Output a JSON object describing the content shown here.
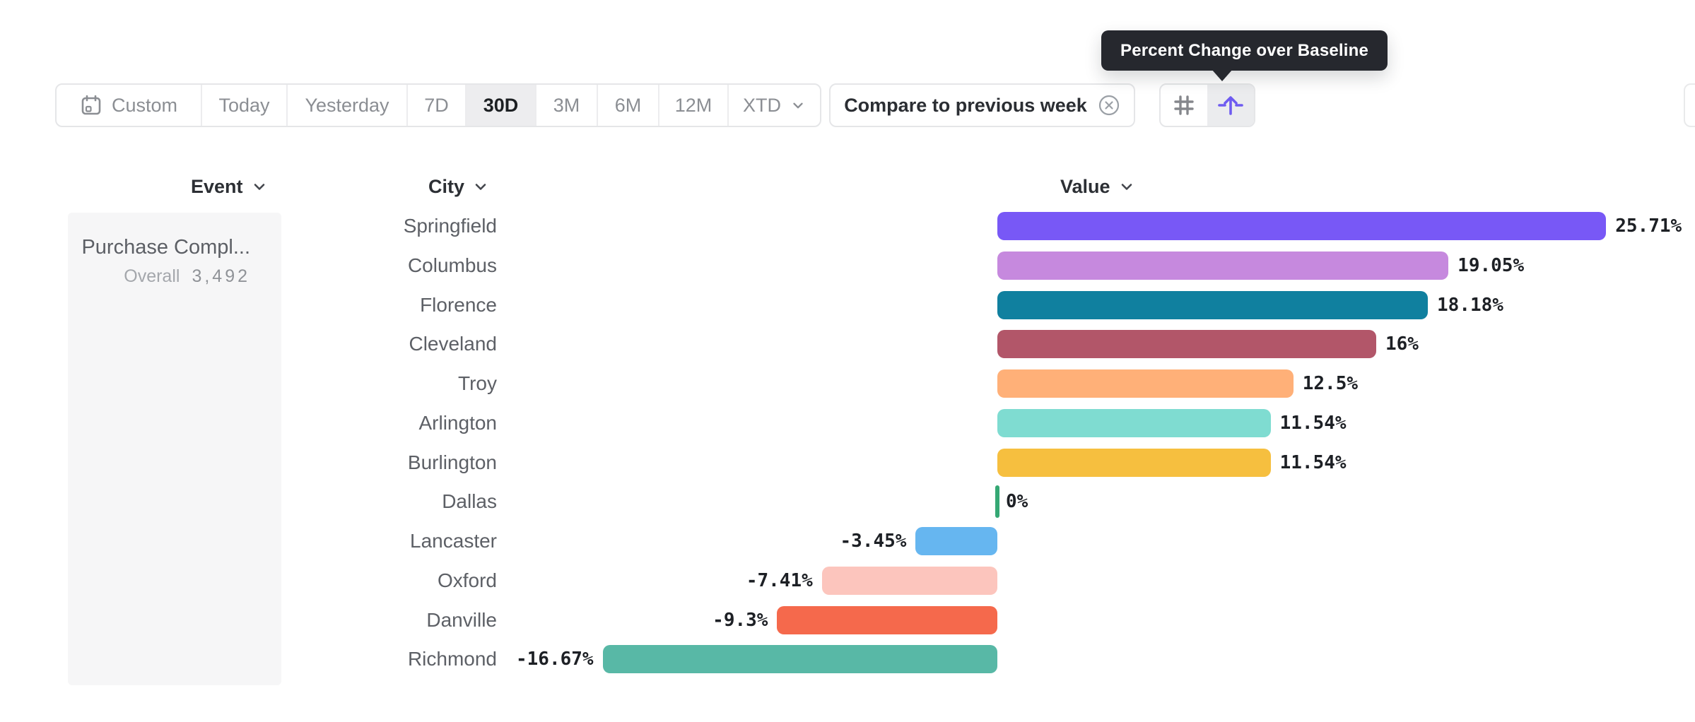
{
  "tooltip": {
    "text": "Percent Change over Baseline",
    "bg_color": "#26282e"
  },
  "toolbar": {
    "date_ranges": [
      {
        "label": "Custom",
        "icon": "calendar-icon",
        "selected": false
      },
      {
        "label": "Today",
        "selected": false
      },
      {
        "label": "Yesterday",
        "selected": false
      },
      {
        "label": "7D",
        "selected": false
      },
      {
        "label": "30D",
        "selected": true
      },
      {
        "label": "3M",
        "selected": false
      },
      {
        "label": "6M",
        "selected": false
      },
      {
        "label": "12M",
        "selected": false
      },
      {
        "label": "XTD",
        "icon": "chevron-down-icon",
        "selected": false
      }
    ],
    "compare": {
      "label": "Compare to previous week",
      "icon": "close-circle-icon"
    },
    "view_toggles": [
      {
        "icon": "grid-icon",
        "selected": false
      },
      {
        "icon": "baseline-arrow-icon",
        "selected": true,
        "color": "#6e5bf0"
      }
    ]
  },
  "table": {
    "columns": [
      {
        "label": "Event"
      },
      {
        "label": "City"
      },
      {
        "label": "Value"
      }
    ],
    "event_panel": {
      "event_name": "Purchase Compl...",
      "overall_label": "Overall",
      "overall_value": "3,492"
    }
  },
  "chart_data": {
    "type": "bar",
    "orientation": "horizontal",
    "title": "Percent Change over Baseline",
    "value_unit": "%",
    "baseline": 0,
    "xlim": [
      -16.67,
      25.71
    ],
    "grid": false,
    "categories": [
      "Springfield",
      "Columbus",
      "Florence",
      "Cleveland",
      "Troy",
      "Arlington",
      "Burlington",
      "Dallas",
      "Lancaster",
      "Oxford",
      "Danville",
      "Richmond"
    ],
    "values": [
      25.71,
      19.05,
      18.18,
      16,
      12.5,
      11.54,
      11.54,
      0,
      -3.45,
      -7.41,
      -9.3,
      -16.67
    ],
    "value_labels": [
      "25.71%",
      "19.05%",
      "18.18%",
      "16%",
      "12.5%",
      "11.54%",
      "11.54%",
      "0%",
      "-3.45%",
      "-7.41%",
      "-9.3%",
      "-16.67%"
    ],
    "colors": [
      "#7858f6",
      "#c689de",
      "#10809f",
      "#b25669",
      "#ffb078",
      "#7fdcd1",
      "#f6bf3f",
      "#35a874",
      "#66b6f0",
      "#fcc5bd",
      "#f5694c",
      "#58b8a6"
    ]
  }
}
